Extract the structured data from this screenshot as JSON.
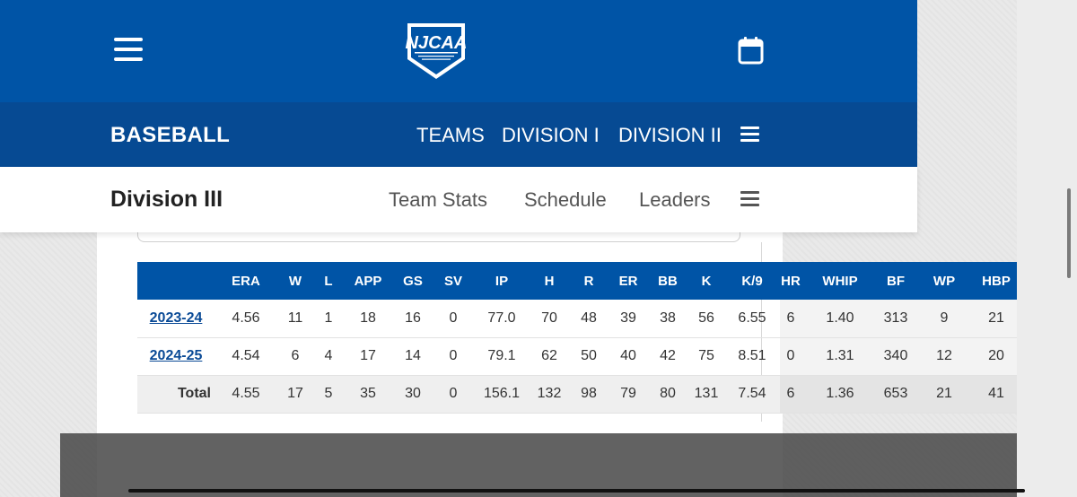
{
  "header": {
    "menu_icon": "hamburger-icon",
    "logo_icon": "njcaa-logo",
    "calendar_icon": "calendar-icon",
    "brand_color": "#0054a6"
  },
  "sport_nav": {
    "title": "BASEBALL",
    "links": [
      "TEAMS",
      "DIVISION I",
      "DIVISION II"
    ],
    "more_icon": "hamburger-icon"
  },
  "division_nav": {
    "title": "Division III",
    "links": [
      "Team Stats",
      "Schedule",
      "Leaders"
    ],
    "more_icon": "hamburger-icon"
  },
  "stats_table": {
    "columns": [
      "",
      "ERA",
      "W",
      "L",
      "APP",
      "GS",
      "SV",
      "IP",
      "H",
      "R",
      "ER",
      "BB",
      "K",
      "K/9",
      "HR",
      "WHIP",
      "BF",
      "WP",
      "HBP"
    ],
    "rows": [
      [
        "2023-24",
        "4.56",
        "11",
        "1",
        "18",
        "16",
        "0",
        "77.0",
        "70",
        "48",
        "39",
        "38",
        "56",
        "6.55",
        "6",
        "1.40",
        "313",
        "9",
        "21"
      ],
      [
        "2024-25",
        "4.54",
        "6",
        "4",
        "17",
        "14",
        "0",
        "79.1",
        "62",
        "50",
        "40",
        "42",
        "75",
        "8.51",
        "0",
        "1.31",
        "340",
        "12",
        "20"
      ]
    ],
    "total": [
      "Total",
      "4.55",
      "17",
      "5",
      "35",
      "30",
      "0",
      "156.1",
      "132",
      "98",
      "79",
      "80",
      "131",
      "7.54",
      "6",
      "1.36",
      "653",
      "21",
      "41"
    ]
  }
}
